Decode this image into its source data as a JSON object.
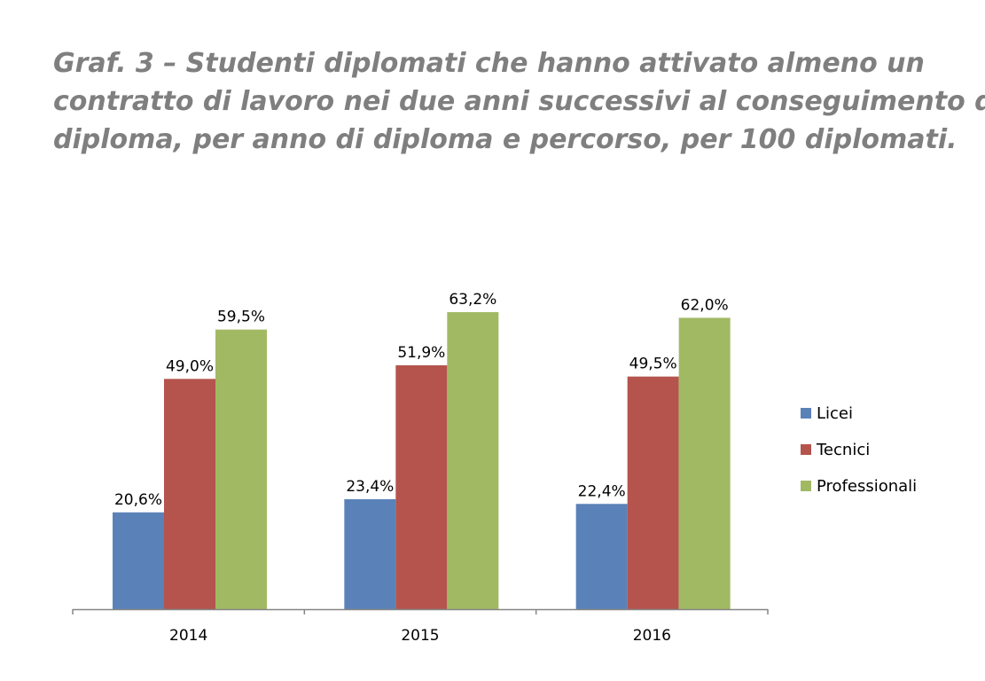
{
  "title_lines": [
    "Graf. 3 – Studenti diplomati che hanno attivato almeno un",
    "contratto di lavoro nei due anni successivi al conseguimento del",
    "diploma, per anno di diploma e percorso, per 100 diplomati."
  ],
  "colors": {
    "title": "#7f7f7f",
    "axis": "#868686"
  },
  "chart_data": {
    "type": "bar",
    "categories": [
      "2014",
      "2015",
      "2016"
    ],
    "series": [
      {
        "name": "Licei",
        "color": "#5a82b9",
        "values": [
          20.6,
          23.4,
          22.4
        ],
        "labels": [
          "20,6%",
          "23,4%",
          "22,4%"
        ]
      },
      {
        "name": "Tecnici",
        "color": "#b4544d",
        "values": [
          49.0,
          51.9,
          49.5
        ],
        "labels": [
          "49,0%",
          "51,9%",
          "49,5%"
        ]
      },
      {
        "name": "Professionali",
        "color": "#a2b964",
        "values": [
          59.5,
          63.2,
          62.0
        ],
        "labels": [
          "59,5%",
          "63,2%",
          "62,0%"
        ]
      }
    ],
    "ylim": [
      0,
      100
    ],
    "legend_position": "right",
    "grid": false
  }
}
